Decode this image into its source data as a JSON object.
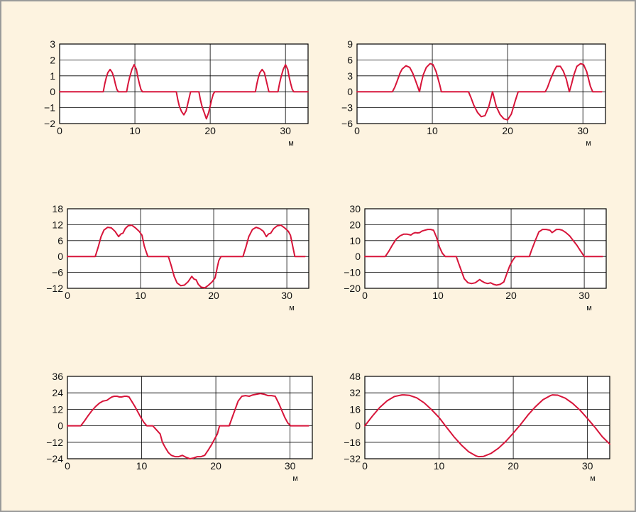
{
  "colors": {
    "background": "#fdf3e0",
    "frame_border": "#9a9a9a",
    "plot_background": "#ffffff",
    "grid": "#000000",
    "series": "#d7153a"
  },
  "chart_data": [
    {
      "type": "line",
      "xlabel": "м",
      "ylabel": "",
      "xlim": [
        0,
        33
      ],
      "ylim": [
        -2,
        3
      ],
      "xticks": [
        0,
        10,
        20,
        30
      ],
      "yticks": [
        3,
        2,
        1,
        0,
        -1,
        -2
      ],
      "xtick_labels": [
        "0",
        "10",
        "20",
        "30"
      ],
      "ytick_labels": [
        "3",
        "2",
        "1",
        "0",
        "−1",
        "−2"
      ],
      "grid": true,
      "series": [
        {
          "x": [
            0,
            5.8,
            6.0,
            6.2,
            6.4,
            6.7,
            7.0,
            7.2,
            7.4,
            7.6,
            7.8,
            8.9,
            9.1,
            9.3,
            9.6,
            9.9,
            10.2,
            10.4,
            10.6,
            10.8,
            11.0,
            15.5,
            15.7,
            15.9,
            16.2,
            16.5,
            16.8,
            17.0,
            17.2,
            17.4,
            18.5,
            18.7,
            18.9,
            19.2,
            19.5,
            19.8,
            20.0,
            20.2,
            20.4,
            20.6,
            26.0,
            26.2,
            26.4,
            26.6,
            26.9,
            27.2,
            27.4,
            27.6,
            27.8,
            29.0,
            29.2,
            29.4,
            29.7,
            30.0,
            30.3,
            30.5,
            30.7,
            30.9,
            31.1,
            33
          ],
          "y": [
            0,
            0,
            0.5,
            0.9,
            1.2,
            1.4,
            1.2,
            0.9,
            0.5,
            0.15,
            0,
            0,
            0.5,
            0.9,
            1.4,
            1.7,
            1.4,
            0.9,
            0.5,
            0.15,
            0,
            0,
            -0.5,
            -0.9,
            -1.25,
            -1.45,
            -1.2,
            -0.8,
            -0.4,
            0,
            0,
            -0.5,
            -0.9,
            -1.3,
            -1.7,
            -1.3,
            -0.9,
            -0.5,
            -0.15,
            0,
            0,
            0.5,
            0.9,
            1.2,
            1.4,
            1.2,
            0.8,
            0.4,
            0,
            0,
            0.5,
            0.9,
            1.4,
            1.7,
            1.4,
            0.9,
            0.5,
            0.15,
            0,
            0
          ]
        }
      ]
    },
    {
      "type": "line",
      "xlabel": "м",
      "ylabel": "",
      "xlim": [
        0,
        33
      ],
      "ylim": [
        -6,
        9
      ],
      "xticks": [
        0,
        10,
        20,
        30
      ],
      "yticks": [
        9,
        6,
        3,
        0,
        -3,
        -6
      ],
      "xtick_labels": [
        "0",
        "10",
        "20",
        "30"
      ],
      "ytick_labels": [
        "9",
        "6",
        "3",
        "0",
        "−3",
        "−6"
      ],
      "grid": true,
      "series": [
        {
          "x": [
            0,
            4.7,
            5.0,
            5.3,
            5.7,
            6.0,
            6.5,
            7.0,
            7.4,
            7.8,
            8.3,
            8.5,
            8.8,
            9.2,
            9.7,
            10.1,
            10.5,
            11.0,
            11.2,
            14.8,
            15.1,
            15.5,
            16.0,
            16.5,
            17.0,
            17.5,
            18.0,
            18.5,
            19.0,
            19.5,
            20.0,
            20.5,
            21.0,
            21.4,
            25.0,
            25.3,
            25.7,
            26.2,
            26.5,
            27.0,
            27.4,
            27.8,
            28.2,
            28.5,
            28.8,
            29.2,
            29.7,
            30.1,
            30.5,
            31.0,
            31.3,
            32.5
          ],
          "y": [
            0,
            0,
            0.8,
            1.9,
            3.5,
            4.3,
            4.9,
            4.6,
            3.5,
            2.0,
            0,
            1.5,
            3.2,
            4.6,
            5.3,
            5.1,
            3.8,
            1.2,
            0,
            0,
            -1.0,
            -2.5,
            -3.9,
            -4.7,
            -4.5,
            -2.8,
            0,
            -2.8,
            -4.3,
            -5.1,
            -5.3,
            -4.2,
            -1.8,
            0,
            0,
            0.8,
            2.4,
            4.0,
            4.8,
            4.8,
            3.9,
            2.4,
            0,
            1.5,
            3.2,
            4.8,
            5.3,
            5.1,
            3.8,
            1.0,
            0,
            0
          ]
        }
      ]
    },
    {
      "type": "line",
      "xlabel": "м",
      "ylabel": "",
      "xlim": [
        0,
        33
      ],
      "ylim": [
        -12,
        18
      ],
      "xticks": [
        0,
        10,
        20,
        30
      ],
      "yticks": [
        18,
        12,
        6,
        0,
        -6,
        -12
      ],
      "xtick_labels": [
        "0",
        "10",
        "20",
        "30"
      ],
      "ytick_labels": [
        "18",
        "12",
        "6",
        "0",
        "−6",
        "−12"
      ],
      "grid": true,
      "series": [
        {
          "x": [
            0,
            3.8,
            4.2,
            4.6,
            5.0,
            5.5,
            6.0,
            6.5,
            7.0,
            7.3,
            7.6,
            7.9,
            8.3,
            8.8,
            9.3,
            9.8,
            10.2,
            10.5,
            10.8,
            11.0,
            13.8,
            14.2,
            14.6,
            15.0,
            15.5,
            16.0,
            16.5,
            17.0,
            17.3,
            17.6,
            17.9,
            18.3,
            18.8,
            19.3,
            19.8,
            20.2,
            20.5,
            20.7,
            21.0,
            24.0,
            24.4,
            24.8,
            25.3,
            25.8,
            26.3,
            26.8,
            27.2,
            27.5,
            27.8,
            28.2,
            28.7,
            29.2,
            29.7,
            30.2,
            30.5,
            30.8,
            31.1,
            32.5
          ],
          "y": [
            0,
            0,
            3.5,
            7.5,
            10.0,
            11.0,
            10.8,
            9.5,
            7.5,
            8.5,
            8.8,
            10.5,
            11.6,
            11.8,
            10.8,
            9.5,
            8.0,
            4.0,
            1.5,
            0,
            0,
            -3.5,
            -7.5,
            -10.0,
            -11.0,
            -10.8,
            -9.5,
            -7.5,
            -8.5,
            -8.8,
            -10.5,
            -11.6,
            -11.8,
            -10.8,
            -9.5,
            -8.0,
            -4.0,
            -1.5,
            0,
            0,
            3.5,
            7.5,
            10.2,
            11.0,
            10.5,
            9.5,
            7.5,
            8.5,
            8.8,
            10.5,
            11.6,
            11.8,
            10.8,
            9.5,
            8.0,
            4.0,
            0,
            0
          ]
        }
      ]
    },
    {
      "type": "line",
      "xlabel": "м",
      "ylabel": "",
      "xlim": [
        0,
        33
      ],
      "ylim": [
        -20,
        30
      ],
      "xticks": [
        0,
        10,
        20,
        30
      ],
      "yticks": [
        30,
        20,
        10,
        0,
        -10,
        -20
      ],
      "xtick_labels": [
        "0",
        "10",
        "20",
        "30"
      ],
      "ytick_labels": [
        "30",
        "20",
        "10",
        "0",
        "−10",
        "−20"
      ],
      "grid": true,
      "series": [
        {
          "x": [
            0,
            2.8,
            3.3,
            3.8,
            4.3,
            4.8,
            5.3,
            5.8,
            6.3,
            6.6,
            6.9,
            7.2,
            7.5,
            7.8,
            8.2,
            8.6,
            9.0,
            9.4,
            9.8,
            10.2,
            10.6,
            11.0,
            12.5,
            12.8,
            13.2,
            13.6,
            14.1,
            14.6,
            15.1,
            15.4,
            15.7,
            16.0,
            16.4,
            16.8,
            17.2,
            17.6,
            18.0,
            18.5,
            19.0,
            19.4,
            19.8,
            20.2,
            20.6,
            21.0,
            22.5,
            22.8,
            23.3,
            23.8,
            24.3,
            24.8,
            25.3,
            25.6,
            25.9,
            26.2,
            26.6,
            27.0,
            27.5,
            28.0,
            28.5,
            29.0,
            29.5,
            30.0,
            30.5,
            32.5
          ],
          "y": [
            0,
            0,
            3.5,
            7.5,
            11.0,
            13.0,
            14.0,
            14.0,
            13.5,
            14.5,
            15.0,
            14.8,
            15.0,
            16.0,
            16.5,
            17.0,
            17.0,
            16.5,
            12.0,
            6.0,
            2.0,
            0,
            0,
            -4.0,
            -9.0,
            -14.0,
            -16.5,
            -17.0,
            -16.5,
            -15.5,
            -14.5,
            -15.5,
            -16.5,
            -17.0,
            -16.5,
            -17.5,
            -18.0,
            -17.5,
            -16.0,
            -11.0,
            -6.0,
            -2.5,
            0,
            0,
            0,
            4.0,
            10.0,
            15.5,
            17.0,
            17.0,
            16.5,
            15.0,
            16.0,
            17.0,
            17.0,
            16.5,
            15.0,
            13.0,
            10.0,
            7.0,
            3.5,
            0,
            0,
            0
          ]
        }
      ]
    },
    {
      "type": "line",
      "xlabel": "м",
      "ylabel": "",
      "xlim": [
        0,
        33
      ],
      "ylim": [
        -24,
        36
      ],
      "xticks": [
        0,
        10,
        20,
        30
      ],
      "yticks": [
        36,
        24,
        12,
        0,
        -12,
        -24
      ],
      "xtick_labels": [
        "0",
        "10",
        "20",
        "30"
      ],
      "ytick_labels": [
        "36",
        "24",
        "12",
        "0",
        "−12",
        "−24"
      ],
      "grid": true,
      "series": [
        {
          "x": [
            0,
            1.8,
            2.3,
            2.8,
            3.3,
            3.8,
            4.3,
            4.8,
            5.3,
            5.7,
            6.0,
            6.3,
            6.7,
            7.0,
            7.3,
            7.7,
            8.0,
            8.3,
            8.7,
            9.1,
            9.5,
            9.9,
            10.3,
            10.7,
            11.1,
            11.5,
            12.5,
            12.8,
            13.2,
            13.6,
            14.0,
            14.5,
            15.0,
            15.5,
            16.0,
            16.5,
            17.0,
            17.5,
            18.0,
            18.5,
            19.0,
            19.4,
            19.8,
            20.2,
            20.5,
            21.5,
            21.8,
            22.2,
            22.6,
            23.0,
            23.5,
            24.0,
            24.5,
            25.0,
            25.5,
            26.0,
            26.5,
            27.0,
            27.5,
            28.0,
            28.5,
            28.9,
            29.3,
            29.7,
            30.1,
            30.5,
            30.8,
            32.5
          ],
          "y": [
            0,
            0,
            3.5,
            7.5,
            11.0,
            14.0,
            16.5,
            18.0,
            18.5,
            20.0,
            21.0,
            21.5,
            21.5,
            21.0,
            21.0,
            21.5,
            21.5,
            21.0,
            17.5,
            14.0,
            10.0,
            6.0,
            2.5,
            0,
            0,
            0,
            -6.0,
            -12.0,
            -16.0,
            -19.5,
            -21.5,
            -22.5,
            -22.5,
            -21.5,
            -23.0,
            -24.0,
            -23.5,
            -22.5,
            -22.5,
            -21.5,
            -17.5,
            -14.0,
            -10.0,
            -6.0,
            0,
            0,
            0,
            6.0,
            12.0,
            18.0,
            21.5,
            22.0,
            21.5,
            22.5,
            23.0,
            23.5,
            23.0,
            22.0,
            22.0,
            21.5,
            16.0,
            11.0,
            6.0,
            2.0,
            0,
            0,
            0,
            0
          ]
        }
      ]
    },
    {
      "type": "line",
      "xlabel": "м",
      "ylabel": "",
      "xlim": [
        0,
        33
      ],
      "ylim": [
        -32,
        48
      ],
      "xticks": [
        0,
        10,
        20,
        30
      ],
      "yticks": [
        48,
        32,
        16,
        0,
        -16,
        -32
      ],
      "xtick_labels": [
        "0",
        "10",
        "20",
        "30"
      ],
      "ytick_labels": [
        "48",
        "32",
        "16",
        "0",
        "−16",
        "−32"
      ],
      "grid": true,
      "series": [
        {
          "x": [
            0,
            1,
            2,
            3,
            4,
            5,
            5.3,
            6,
            7,
            8,
            9,
            10,
            11,
            12,
            13,
            14,
            15,
            15.3,
            16,
            17,
            18,
            19,
            20,
            21,
            22,
            23,
            24,
            25,
            25.3,
            26,
            27,
            28,
            29,
            30,
            31,
            32,
            33
          ],
          "y": [
            0,
            9.3,
            17.7,
            24.3,
            28.5,
            30,
            30,
            29.6,
            27.1,
            22.3,
            15.6,
            8.1,
            -1.4,
            -10.6,
            -18.6,
            -25.3,
            -29.3,
            -30,
            -29.7,
            -26.8,
            -21.8,
            -15.1,
            -7.1,
            1.4,
            10.6,
            18.6,
            25.3,
            29.3,
            30,
            29.7,
            26.8,
            21.8,
            15.1,
            7.1,
            -1.4,
            -10.6,
            -17.7
          ]
        }
      ]
    }
  ]
}
